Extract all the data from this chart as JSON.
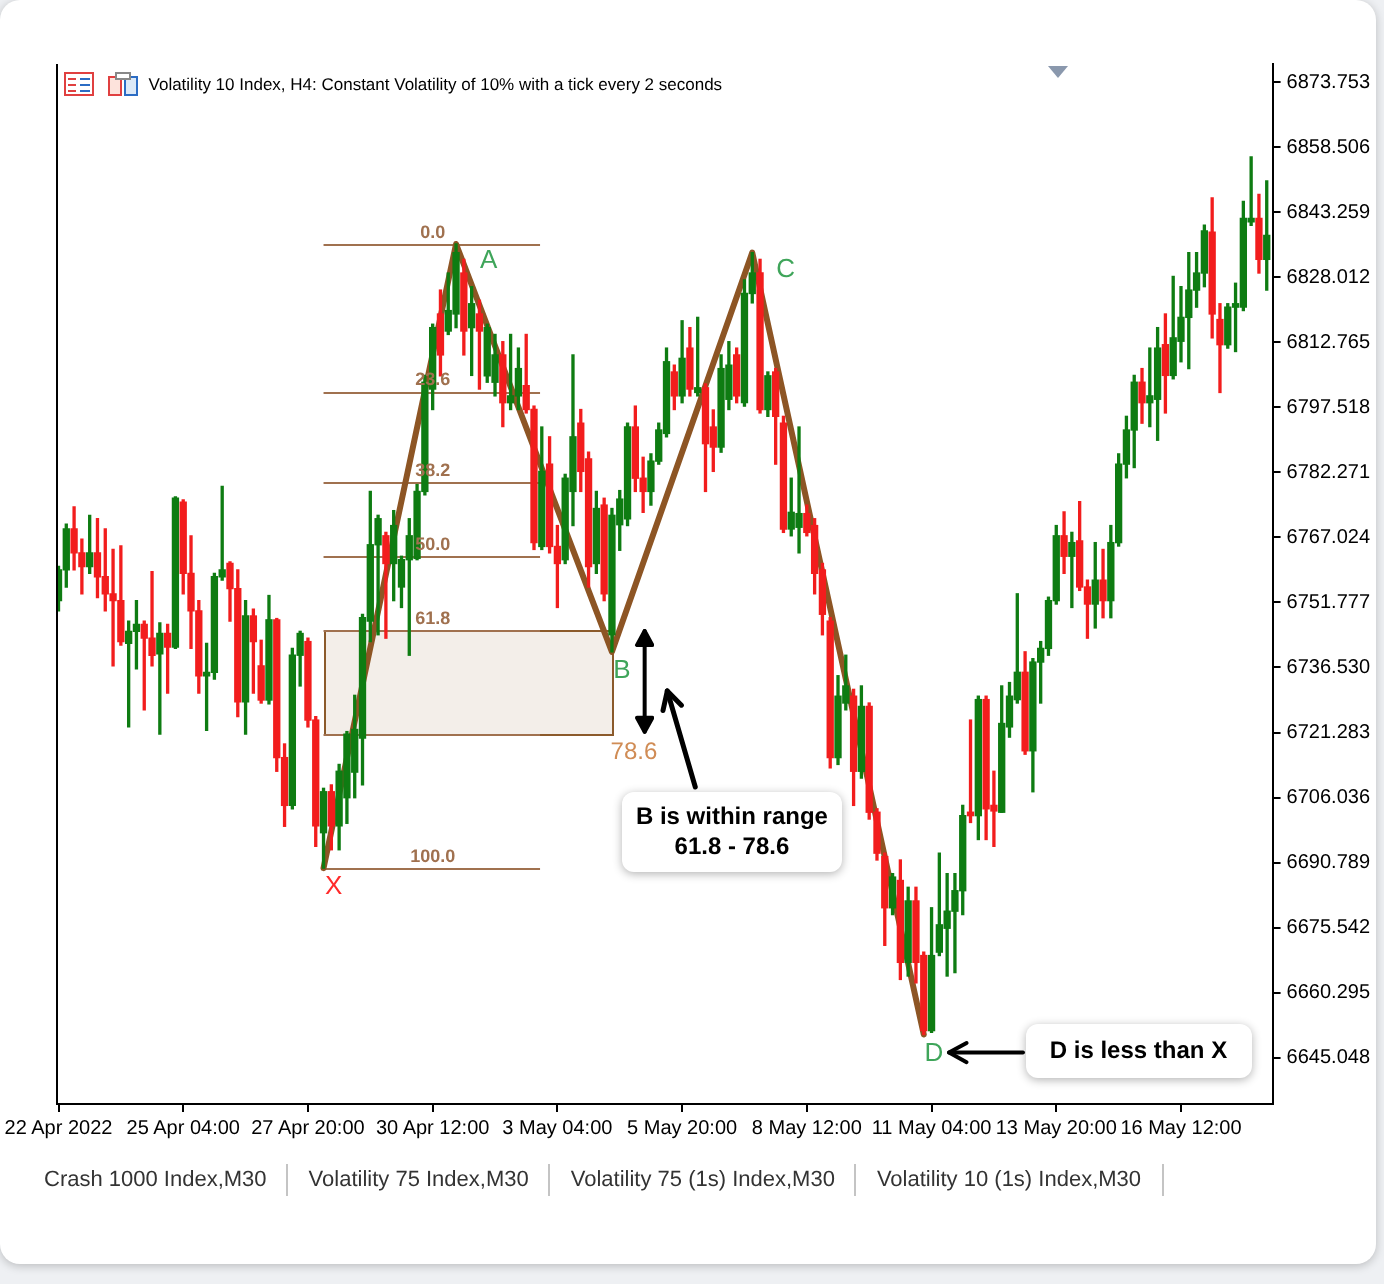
{
  "chart_data": {
    "type": "candlestick",
    "title": "Volatility 10 Index, H4: Constant Volatility of 10% with a tick every 2 seconds",
    "x": [
      "2022-04-22T12:00",
      "2022-04-22T16:00",
      "2022-04-22T20:00",
      "2022-04-23T00:00",
      "2022-04-23T04:00",
      "2022-04-23T08:00",
      "2022-04-23T12:00",
      "2022-04-23T16:00",
      "2022-04-23T20:00",
      "2022-04-24T00:00",
      "2022-04-24T04:00",
      "2022-04-24T08:00",
      "2022-04-24T12:00",
      "2022-04-24T16:00",
      "2022-04-24T20:00",
      "2022-04-25T00:00",
      "2022-04-25T04:00",
      "2022-04-25T08:00",
      "2022-04-25T12:00",
      "2022-04-25T16:00",
      "2022-04-25T20:00",
      "2022-04-26T00:00",
      "2022-04-26T04:00",
      "2022-04-26T08:00",
      "2022-04-26T12:00",
      "2022-04-26T16:00",
      "2022-04-26T20:00",
      "2022-04-27T00:00",
      "2022-04-27T04:00",
      "2022-04-27T08:00",
      "2022-04-27T12:00",
      "2022-04-27T16:00",
      "2022-04-27T20:00",
      "2022-04-28T00:00",
      "2022-04-28T04:00",
      "2022-04-28T08:00",
      "2022-04-28T12:00",
      "2022-04-28T16:00",
      "2022-04-28T20:00",
      "2022-04-29T00:00",
      "2022-04-29T04:00",
      "2022-04-29T08:00",
      "2022-04-29T12:00",
      "2022-04-29T16:00",
      "2022-04-29T20:00",
      "2022-04-30T00:00",
      "2022-04-30T04:00",
      "2022-04-30T08:00",
      "2022-04-30T12:00",
      "2022-04-30T16:00",
      "2022-04-30T20:00",
      "2022-05-01T00:00",
      "2022-05-01T04:00",
      "2022-05-01T08:00",
      "2022-05-01T12:00",
      "2022-05-01T16:00",
      "2022-05-01T20:00",
      "2022-05-02T00:00",
      "2022-05-02T04:00",
      "2022-05-02T08:00",
      "2022-05-02T12:00",
      "2022-05-02T16:00",
      "2022-05-02T20:00",
      "2022-05-03T00:00",
      "2022-05-03T04:00",
      "2022-05-03T08:00",
      "2022-05-03T12:00",
      "2022-05-03T16:00",
      "2022-05-03T20:00",
      "2022-05-04T00:00",
      "2022-05-04T04:00",
      "2022-05-04T08:00",
      "2022-05-04T12:00",
      "2022-05-04T16:00",
      "2022-05-04T20:00",
      "2022-05-05T00:00",
      "2022-05-05T04:00",
      "2022-05-05T08:00",
      "2022-05-05T12:00",
      "2022-05-05T16:00",
      "2022-05-05T20:00",
      "2022-05-06T00:00",
      "2022-05-06T04:00",
      "2022-05-06T08:00",
      "2022-05-06T12:00",
      "2022-05-06T16:00",
      "2022-05-06T20:00",
      "2022-05-07T00:00",
      "2022-05-07T04:00",
      "2022-05-07T08:00",
      "2022-05-07T12:00",
      "2022-05-07T16:00",
      "2022-05-07T20:00",
      "2022-05-08T00:00",
      "2022-05-08T04:00",
      "2022-05-08T08:00",
      "2022-05-08T12:00",
      "2022-05-08T16:00",
      "2022-05-08T20:00",
      "2022-05-09T00:00",
      "2022-05-09T04:00",
      "2022-05-09T08:00",
      "2022-05-09T12:00",
      "2022-05-09T16:00",
      "2022-05-09T20:00",
      "2022-05-10T00:00",
      "2022-05-10T04:00",
      "2022-05-10T08:00",
      "2022-05-10T12:00",
      "2022-05-10T16:00",
      "2022-05-10T20:00",
      "2022-05-11T00:00",
      "2022-05-11T04:00",
      "2022-05-11T08:00",
      "2022-05-11T12:00",
      "2022-05-11T16:00",
      "2022-05-11T20:00",
      "2022-05-12T00:00",
      "2022-05-12T04:00",
      "2022-05-12T08:00",
      "2022-05-12T12:00",
      "2022-05-12T16:00",
      "2022-05-12T20:00",
      "2022-05-13T00:00",
      "2022-05-13T04:00",
      "2022-05-13T08:00",
      "2022-05-13T12:00",
      "2022-05-13T16:00",
      "2022-05-13T20:00",
      "2022-05-14T00:00",
      "2022-05-14T04:00",
      "2022-05-14T08:00",
      "2022-05-14T12:00",
      "2022-05-14T16:00",
      "2022-05-14T20:00",
      "2022-05-15T00:00",
      "2022-05-15T04:00",
      "2022-05-15T08:00",
      "2022-05-15T12:00",
      "2022-05-15T16:00",
      "2022-05-15T20:00",
      "2022-05-16T00:00",
      "2022-05-16T04:00",
      "2022-05-16T08:00",
      "2022-05-16T12:00",
      "2022-05-16T16:00",
      "2022-05-16T20:00",
      "2022-05-17T00:00",
      "2022-05-17T04:00",
      "2022-05-17T08:00",
      "2022-05-17T12:00",
      "2022-05-17T16:00",
      "2022-05-17T20:00",
      "2022-05-18T00:00",
      "2022-05-18T04:00",
      "2022-05-18T08:00"
    ],
    "ohlc": [
      [
        6752.2,
        6760.2,
        6749.8,
        6759.4
      ],
      [
        6759.4,
        6770.1,
        6755.4,
        6769.0
      ],
      [
        6769.0,
        6774.2,
        6759.4,
        6763.4
      ],
      [
        6763.4,
        6766.6,
        6753.8,
        6760.2
      ],
      [
        6760.2,
        6772.2,
        6758.6,
        6763.4
      ],
      [
        6763.4,
        6771.4,
        6752.9,
        6757.8
      ],
      [
        6757.8,
        6769.0,
        6749.8,
        6753.8
      ],
      [
        6753.8,
        6764.2,
        6736.9,
        6752.2
      ],
      [
        6752.2,
        6765.0,
        6741.8,
        6742.6
      ],
      [
        6742.2,
        6747.4,
        6722.6,
        6745.0
      ],
      [
        6745.0,
        6752.2,
        6736.2,
        6746.6
      ],
      [
        6746.6,
        6747.4,
        6726.6,
        6743.4
      ],
      [
        6743.4,
        6759.0,
        6736.9,
        6739.4
      ],
      [
        6739.7,
        6747.0,
        6720.9,
        6744.5
      ],
      [
        6744.5,
        6746.6,
        6730.5,
        6741.3
      ],
      [
        6741.3,
        6776.5,
        6741.0,
        6776.2
      ],
      [
        6775.3,
        6775.8,
        6753.8,
        6758.6
      ],
      [
        6758.6,
        6767.4,
        6741.0,
        6749.8
      ],
      [
        6749.8,
        6752.2,
        6730.5,
        6734.6
      ],
      [
        6734.6,
        6742.2,
        6721.8,
        6735.4
      ],
      [
        6735.4,
        6758.6,
        6733.8,
        6757.8
      ],
      [
        6757.8,
        6779.0,
        6757.0,
        6759.4
      ],
      [
        6760.9,
        6761.3,
        6747.4,
        6755.0
      ],
      [
        6755.0,
        6759.4,
        6725.0,
        6728.5
      ],
      [
        6728.5,
        6752.2,
        6720.9,
        6748.6
      ],
      [
        6748.6,
        6750.2,
        6730.5,
        6742.6
      ],
      [
        6736.9,
        6742.9,
        6728.2,
        6728.9
      ],
      [
        6728.9,
        6753.4,
        6728.0,
        6747.7
      ],
      [
        6747.7,
        6748.0,
        6712.2,
        6715.4
      ],
      [
        6715.4,
        6718.6,
        6699.3,
        6704.2
      ],
      [
        6704.2,
        6741.0,
        6703.4,
        6739.4
      ],
      [
        6739.4,
        6745.0,
        6732.2,
        6744.5
      ],
      [
        6742.6,
        6743.4,
        6722.6,
        6724.2
      ],
      [
        6724.2,
        6725.0,
        6694.6,
        6699.4
      ],
      [
        6697.8,
        6708.2,
        6689.5,
        6707.4
      ],
      [
        6707.4,
        6709.0,
        6693.8,
        6699.4
      ],
      [
        6699.4,
        6713.8,
        6693.8,
        6712.2
      ],
      [
        6706.0,
        6721.5,
        6700.0,
        6720.9
      ],
      [
        6712.0,
        6730.0,
        6706.0,
        6722.0
      ],
      [
        6720.0,
        6749.0,
        6709.0,
        6748.2
      ],
      [
        6747.4,
        6777.8,
        6742.6,
        6765.3
      ],
      [
        6765.3,
        6772.2,
        6744.2,
        6771.4
      ],
      [
        6767.4,
        6768.2,
        6743.4,
        6760.9
      ],
      [
        6760.9,
        6773.3,
        6752.2,
        6769.8
      ],
      [
        6755.4,
        6762.6,
        6750.6,
        6761.8
      ],
      [
        6761.8,
        6771.4,
        6739.4,
        6767.4
      ],
      [
        6762.1,
        6779.4,
        6761.8,
        6777.8
      ],
      [
        6777.8,
        6805.0,
        6777.0,
        6803.4
      ],
      [
        6801.8,
        6817.0,
        6797.0,
        6816.2
      ],
      [
        6819.4,
        6825.0,
        6804.9,
        6809.8
      ],
      [
        6815.4,
        6829.0,
        6814.6,
        6820.2
      ],
      [
        6819.4,
        6835.8,
        6816.2,
        6833.8
      ],
      [
        6829.0,
        6832.2,
        6809.8,
        6815.4
      ],
      [
        6816.2,
        6825.8,
        6805.0,
        6821.8
      ],
      [
        6819.4,
        6822.6,
        6801.8,
        6815.4
      ],
      [
        6804.9,
        6817.0,
        6803.4,
        6816.2
      ],
      [
        6803.4,
        6814.6,
        6800.2,
        6809.8
      ],
      [
        6809.8,
        6812.9,
        6793.0,
        6798.6
      ],
      [
        6798.6,
        6814.6,
        6797.0,
        6800.2
      ],
      [
        6800.2,
        6811.4,
        6797.0,
        6806.6
      ],
      [
        6802.6,
        6814.6,
        6796.2,
        6797.0
      ],
      [
        6797.0,
        6797.8,
        6764.2,
        6765.8
      ],
      [
        6764.9,
        6792.9,
        6764.2,
        6782.5
      ],
      [
        6784.2,
        6790.6,
        6763.4,
        6764.9
      ],
      [
        6764.9,
        6769.8,
        6750.6,
        6760.9
      ],
      [
        6761.8,
        6781.8,
        6760.9,
        6780.9
      ],
      [
        6777.8,
        6809.8,
        6769.8,
        6790.6
      ],
      [
        6793.8,
        6797.0,
        6777.8,
        6782.5
      ],
      [
        6785.4,
        6787.0,
        6755.4,
        6760.2
      ],
      [
        6760.9,
        6777.8,
        6758.6,
        6773.8
      ],
      [
        6774.6,
        6776.2,
        6752.2,
        6753.8
      ],
      [
        6744.2,
        6773.8,
        6740.2,
        6772.2
      ],
      [
        6770.0,
        6778.0,
        6764.0,
        6776.0
      ],
      [
        6771.4,
        6793.8,
        6769.8,
        6792.9
      ],
      [
        6792.9,
        6797.8,
        6777.8,
        6780.9
      ],
      [
        6780.9,
        6785.8,
        6772.9,
        6777.8
      ],
      [
        6777.8,
        6786.6,
        6774.6,
        6784.9
      ],
      [
        6784.9,
        6793.8,
        6784.2,
        6792.2
      ],
      [
        6791.4,
        6811.4,
        6790.6,
        6808.2
      ],
      [
        6805.8,
        6807.4,
        6797.0,
        6800.2
      ],
      [
        6800.2,
        6817.8,
        6798.6,
        6809.0
      ],
      [
        6811.4,
        6816.2,
        6800.2,
        6801.8
      ],
      [
        6801.0,
        6818.6,
        6800.2,
        6802.1
      ],
      [
        6802.1,
        6803.0,
        6777.8,
        6789.0
      ],
      [
        6792.9,
        6796.9,
        6782.5,
        6788.2
      ],
      [
        6788.2,
        6809.8,
        6787.0,
        6806.6
      ],
      [
        6799.4,
        6812.9,
        6797.0,
        6807.4
      ],
      [
        6809.8,
        6811.4,
        6798.6,
        6800.2
      ],
      [
        6798.6,
        6827.4,
        6797.8,
        6824.2
      ],
      [
        6824.2,
        6833.8,
        6822.0,
        6829.0
      ],
      [
        6829.0,
        6832.2,
        6796.2,
        6797.0
      ],
      [
        6797.0,
        6805.8,
        6795.4,
        6804.9
      ],
      [
        6805.8,
        6806.6,
        6784.2,
        6795.4
      ],
      [
        6793.8,
        6795.4,
        6768.2,
        6769.0
      ],
      [
        6769.0,
        6780.9,
        6767.4,
        6772.9
      ],
      [
        6769.4,
        6792.9,
        6763.4,
        6772.6
      ],
      [
        6772.6,
        6774.6,
        6767.4,
        6768.2
      ],
      [
        6769.8,
        6771.4,
        6753.8,
        6758.6
      ],
      [
        6759.4,
        6760.9,
        6744.2,
        6749.0
      ],
      [
        6747.4,
        6748.2,
        6713.0,
        6715.4
      ],
      [
        6715.4,
        6734.6,
        6713.8,
        6729.8
      ],
      [
        6728.2,
        6739.4,
        6726.6,
        6732.2
      ],
      [
        6729.8,
        6731.4,
        6704.2,
        6712.2
      ],
      [
        6712.2,
        6732.2,
        6710.6,
        6727.4
      ],
      [
        6727.4,
        6728.2,
        6701.0,
        6702.6
      ],
      [
        6702.6,
        6703.4,
        6691.4,
        6693.0
      ],
      [
        6692.2,
        6693.0,
        6671.4,
        6680.2
      ],
      [
        6680.2,
        6688.2,
        6678.6,
        6687.4
      ],
      [
        6686.6,
        6691.4,
        6663.4,
        6667.4
      ],
      [
        6667.4,
        6685.0,
        6664.2,
        6681.8
      ],
      [
        6681.8,
        6685.0,
        6662.6,
        6667.4
      ],
      [
        6669.0,
        6669.8,
        6650.5,
        6651.4
      ],
      [
        6651.4,
        6680.2,
        6651.0,
        6669.0
      ],
      [
        6669.8,
        6693.0,
        6669.0,
        6676.2
      ],
      [
        6675.4,
        6688.2,
        6664.2,
        6679.4
      ],
      [
        6679.4,
        6688.2,
        6665.0,
        6684.2
      ],
      [
        6684.2,
        6704.2,
        6678.6,
        6701.8
      ],
      [
        6702.6,
        6724.2,
        6700.2,
        6701.8
      ],
      [
        6701.8,
        6729.8,
        6696.2,
        6729.0
      ],
      [
        6729.0,
        6729.8,
        6696.2,
        6703.4
      ],
      [
        6704.2,
        6712.2,
        6694.6,
        6702.9
      ],
      [
        6702.6,
        6732.2,
        6702.6,
        6723.4
      ],
      [
        6722.6,
        6733.0,
        6720.2,
        6729.8
      ],
      [
        6729.0,
        6753.8,
        6728.2,
        6735.4
      ],
      [
        6735.4,
        6740.2,
        6716.2,
        6717.0
      ],
      [
        6717.0,
        6738.6,
        6707.4,
        6737.8
      ],
      [
        6737.8,
        6742.6,
        6728.2,
        6741.0
      ],
      [
        6741.0,
        6753.0,
        6739.4,
        6752.2
      ],
      [
        6752.2,
        6769.8,
        6751.4,
        6767.4
      ],
      [
        6767.4,
        6773.0,
        6758.6,
        6762.6
      ],
      [
        6762.6,
        6768.2,
        6750.6,
        6765.8
      ],
      [
        6766.2,
        6775.4,
        6754.6,
        6755.4
      ],
      [
        6755.4,
        6757.0,
        6743.4,
        6751.4
      ],
      [
        6751.4,
        6765.8,
        6745.8,
        6757.0
      ],
      [
        6757.0,
        6764.2,
        6748.2,
        6752.2
      ],
      [
        6752.2,
        6769.8,
        6748.2,
        6765.8
      ],
      [
        6765.8,
        6786.6,
        6765.0,
        6784.2
      ],
      [
        6784.2,
        6795.4,
        6781.0,
        6792.2
      ],
      [
        6792.2,
        6805.0,
        6783.4,
        6803.4
      ],
      [
        6803.4,
        6806.6,
        6793.8,
        6798.6
      ],
      [
        6798.6,
        6811.4,
        6793.0,
        6800.2
      ],
      [
        6799.4,
        6816.2,
        6789.8,
        6811.4
      ],
      [
        6812.2,
        6819.4,
        6796.2,
        6805.0
      ],
      [
        6805.0,
        6828.2,
        6804.2,
        6813.8
      ],
      [
        6813.0,
        6825.8,
        6808.2,
        6818.6
      ],
      [
        6818.6,
        6833.8,
        6806.6,
        6825.0
      ],
      [
        6825.0,
        6833.8,
        6821.0,
        6829.0
      ],
      [
        6829.0,
        6840.2,
        6825.8,
        6838.9
      ],
      [
        6838.6,
        6846.6,
        6813.8,
        6819.4
      ],
      [
        6818.1,
        6821.8,
        6801.0,
        6812.2
      ],
      [
        6812.2,
        6821.8,
        6811.4,
        6821.0
      ],
      [
        6821.0,
        6826.6,
        6810.6,
        6821.8
      ],
      [
        6821.0,
        6845.8,
        6820.2,
        6841.8
      ],
      [
        6841.0,
        6856.2,
        6840.2,
        6841.8
      ],
      [
        6841.8,
        6847.4,
        6829.0,
        6832.2
      ],
      [
        6832.2,
        6850.6,
        6825.0,
        6837.8
      ]
    ],
    "colors": [
      "#0e7c12",
      "#0e7c12",
      "#f21d1d",
      "#f21d1d",
      "#0e7c12",
      "#f21d1d",
      "#f21d1d",
      "#f21d1d",
      "#f21d1d",
      "#0e7c12",
      "#0e7c12",
      "#f21d1d",
      "#f21d1d",
      "#0e7c12",
      "#f21d1d",
      "#0e7c12",
      "#f21d1d",
      "#f21d1d",
      "#f21d1d",
      "#0e7c12",
      "#0e7c12",
      "#0e7c12",
      "#f21d1d",
      "#f21d1d",
      "#0e7c12",
      "#f21d1d",
      "#f21d1d",
      "#0e7c12",
      "#f21d1d",
      "#f21d1d",
      "#0e7c12",
      "#0e7c12",
      "#f21d1d",
      "#f21d1d",
      "#0e7c12",
      "#f21d1d",
      "#0e7c12",
      "#0e7c12",
      "#0e7c12",
      "#0e7c12",
      "#0e7c12",
      "#0e7c12",
      "#f21d1d",
      "#0e7c12",
      "#0e7c12",
      "#0e7c12",
      "#0e7c12",
      "#0e7c12",
      "#0e7c12",
      "#f21d1d",
      "#0e7c12",
      "#0e7c12",
      "#f21d1d",
      "#0e7c12",
      "#f21d1d",
      "#0e7c12",
      "#0e7c12",
      "#f21d1d",
      "#0e7c12",
      "#0e7c12",
      "#f21d1d",
      "#f21d1d",
      "#0e7c12",
      "#f21d1d",
      "#f21d1d",
      "#0e7c12",
      "#0e7c12",
      "#f21d1d",
      "#f21d1d",
      "#0e7c12",
      "#f21d1d",
      "#0e7c12",
      "#0e7c12",
      "#0e7c12",
      "#f21d1d",
      "#f21d1d",
      "#0e7c12",
      "#0e7c12",
      "#0e7c12",
      "#f21d1d",
      "#0e7c12",
      "#f21d1d",
      "#0e7c12",
      "#f21d1d",
      "#f21d1d",
      "#0e7c12",
      "#0e7c12",
      "#f21d1d",
      "#0e7c12",
      "#0e7c12",
      "#f21d1d",
      "#0e7c12",
      "#f21d1d",
      "#f21d1d",
      "#0e7c12",
      "#0e7c12",
      "#f21d1d",
      "#f21d1d",
      "#f21d1d",
      "#f21d1d",
      "#0e7c12",
      "#0e7c12",
      "#f21d1d",
      "#0e7c12",
      "#f21d1d",
      "#f21d1d",
      "#f21d1d",
      "#0e7c12",
      "#f21d1d",
      "#0e7c12",
      "#f21d1d",
      "#f21d1d",
      "#0e7c12",
      "#0e7c12",
      "#0e7c12",
      "#0e7c12",
      "#0e7c12",
      "#f21d1d",
      "#0e7c12",
      "#f21d1d",
      "#f21d1d",
      "#0e7c12",
      "#0e7c12",
      "#0e7c12",
      "#f21d1d",
      "#0e7c12",
      "#0e7c12",
      "#0e7c12",
      "#0e7c12",
      "#f21d1d",
      "#0e7c12",
      "#f21d1d",
      "#f21d1d",
      "#0e7c12",
      "#f21d1d",
      "#0e7c12",
      "#0e7c12",
      "#0e7c12",
      "#0e7c12",
      "#f21d1d",
      "#0e7c12",
      "#0e7c12",
      "#f21d1d",
      "#0e7c12",
      "#0e7c12",
      "#0e7c12",
      "#0e7c12",
      "#0e7c12",
      "#f21d1d",
      "#f21d1d",
      "#0e7c12",
      "#0e7c12",
      "#0e7c12",
      "#0e7c12",
      "#f21d1d",
      "#0e7c12"
    ],
    "series": [
      {
        "type": "line",
        "x": [
          "2022-04-28T04:00",
          "2022-05-01T00:00",
          "2022-05-04T08:00",
          "2022-05-07T08:00",
          "2022-05-11T00:00"
        ],
        "values": [
          6689.5,
          6835.8,
          6740.2,
          6833.8,
          6650.5
        ],
        "color": "#8d5524"
      }
    ],
    "xlim": [
      "2022-04-22T11:00",
      "2022-05-18T11:00"
    ],
    "xticks": [
      {
        "value": "2022-04-22T12:00",
        "label": "22 Apr 2022"
      },
      {
        "value": "2022-04-25T04:00",
        "label": "25 Apr 04:00"
      },
      {
        "value": "2022-04-27T20:00",
        "label": "27 Apr 20:00"
      },
      {
        "value": "2022-04-30T12:00",
        "label": "30 Apr 12:00"
      },
      {
        "value": "2022-05-03T04:00",
        "label": "3 May 04:00"
      },
      {
        "value": "2022-05-05T20:00",
        "label": "5 May 20:00"
      },
      {
        "value": "2022-05-08T12:00",
        "label": "8 May 12:00"
      },
      {
        "value": "2022-05-11T04:00",
        "label": "11 May 04:00"
      },
      {
        "value": "2022-05-13T20:00",
        "label": "13 May 20:00"
      },
      {
        "value": "2022-05-16T12:00",
        "label": "16 May 12:00"
      }
    ],
    "ylim": [
      6634.2,
      6878.0
    ],
    "yticks": [
      6645.048,
      6660.295,
      6675.542,
      6690.789,
      6706.036,
      6721.283,
      {
        "value": 6736.53,
        "label": "6736.530"
      },
      6751.777,
      6767.024,
      6782.271,
      6797.518,
      6812.765,
      6828.012,
      6843.259,
      6858.506,
      6873.753
    ],
    "ref_lines": [
      {
        "axis": "y",
        "value": 6835.8,
        "color": "#a0714f"
      },
      {
        "axis": "y",
        "value": 6801.3,
        "color": "#a0714f"
      },
      {
        "axis": "y",
        "value": 6779.9,
        "color": "#a0714f"
      },
      {
        "axis": "y",
        "value": 6762.7,
        "color": "#a0714f"
      },
      {
        "axis": "y",
        "value": 6745.4,
        "color": "#a0714f"
      },
      {
        "axis": "y",
        "value": 6720.8,
        "color": "#a0714f"
      },
      {
        "axis": "y",
        "value": 6689.5,
        "color": "#a0714f"
      }
    ],
    "bands": [
      {
        "axis": "y",
        "from": 6720.8,
        "to": 6745.4,
        "color": "#8b5a2b"
      }
    ],
    "annotations": [
      {
        "text": "X",
        "x": "2022-04-28T04:00",
        "y": 6689.5
      },
      {
        "text": "A",
        "x": "2022-05-01T00:00",
        "y": 6835.8
      },
      {
        "text": "B",
        "x": "2022-05-04T08:00",
        "y": 6740.2
      },
      {
        "text": "C",
        "x": "2022-05-07T08:00",
        "y": 6833.8
      },
      {
        "text": "D",
        "x": "2022-05-11T00:00",
        "y": 6650.5
      },
      {
        "text": "0.0",
        "x": "2022-04-30T12:00",
        "y": 6835.8
      },
      {
        "text": "23.6",
        "x": "2022-04-30T12:00",
        "y": 6801.3
      },
      {
        "text": "38.2",
        "x": "2022-04-30T12:00",
        "y": 6779.9
      },
      {
        "text": "50.0",
        "x": "2022-04-30T12:00",
        "y": 6762.7
      },
      {
        "text": "61.8",
        "x": "2022-04-30T12:00",
        "y": 6745.4
      },
      {
        "text": "78.6",
        "x": "2022-05-04T08:00",
        "y": 6720.8
      },
      {
        "text": "100.0",
        "x": "2022-04-30T12:00",
        "y": 6689.5
      },
      "B is within range 61.8 - 78.6",
      "D is less than X",
      "Crash 1000 Index,M30",
      "Volatility 75 Index,M30",
      "Volatility 75 (1s) Index,M30",
      "Volatility 10 (1s) Index,M30"
    ]
  }
}
